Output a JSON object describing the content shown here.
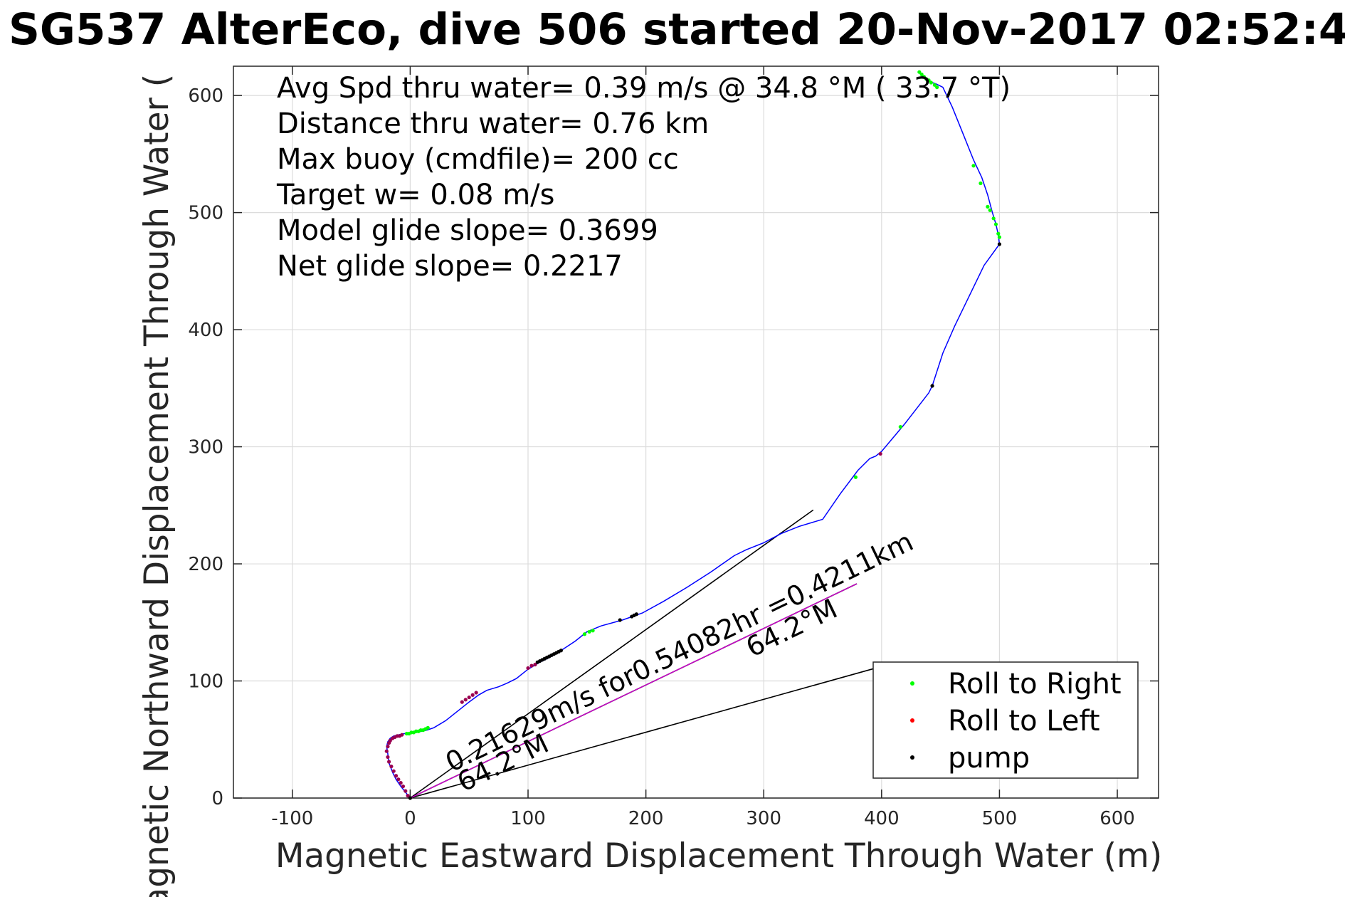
{
  "chart_data": {
    "type": "line",
    "title": "SG537 AlterEco, dive 506 started 20-Nov-2017 02:52:4",
    "xlabel": "Magnetic Eastward Displacement Through Water (m)",
    "ylabel": "Magnetic Northward Displacement Through Water (",
    "xlim": [
      -150,
      635
    ],
    "ylim": [
      0,
      625
    ],
    "xticks": [
      -100,
      0,
      100,
      200,
      300,
      400,
      500,
      600
    ],
    "xtick_labels": [
      "-100",
      "0",
      "100",
      "200",
      "300",
      "400",
      "500",
      "600"
    ],
    "yticks": [
      0,
      100,
      200,
      300,
      400,
      500,
      600
    ],
    "ytick_labels": [
      "0",
      "100",
      "200",
      "300",
      "400",
      "500",
      "600"
    ],
    "grid": true,
    "legend_position": "bottom-right",
    "info_lines": [
      "Avg Spd thru water=  0.39 m/s @  34.8 °M ( 33.7 °T)",
      "Distance thru water=  0.76 km",
      "Max buoy (cmdfile)= 200 cc",
      "Target w= 0.08 m/s",
      "Model glide slope= 0.3699",
      "Net glide slope= 0.2217"
    ],
    "annotations": [
      {
        "text": "0.21629m/s for0.54082hr =0.4211km",
        "x": 35,
        "y": 22,
        "angle": 25.8
      },
      {
        "text": "64.2°M",
        "x": 45,
        "y": 5,
        "angle": 25.8
      },
      {
        "text": "64.2°M",
        "x": 290,
        "y": 120,
        "angle": 25.8
      }
    ],
    "reference_lines": [
      {
        "name": "heading",
        "x": [
          0,
          342
        ],
        "y": [
          0,
          246
        ]
      },
      {
        "name": "net",
        "x": [
          0,
          379
        ],
        "y": [
          0,
          183
        ]
      },
      {
        "name": "current",
        "x": [
          0,
          395
        ],
        "y": [
          0,
          111
        ]
      }
    ],
    "track": {
      "name": "track",
      "color": "#0000ff",
      "x": [
        0,
        -4,
        -8,
        -12,
        -15,
        -18,
        -19,
        -20,
        -19,
        -17,
        -14,
        -10,
        -5,
        0,
        5,
        10,
        14,
        20,
        30,
        40,
        50,
        58,
        65,
        75,
        82,
        90,
        100,
        110,
        120,
        128,
        140,
        150,
        162,
        180,
        197,
        215,
        235,
        255,
        275,
        285,
        300,
        315,
        330,
        350,
        365,
        380,
        390,
        395,
        400,
        410,
        420,
        430,
        440,
        443,
        452,
        462,
        475,
        487,
        500,
        499,
        497,
        494,
        490,
        485,
        478,
        470,
        460,
        452,
        446,
        440,
        434,
        432
      ],
      "y": [
        0,
        5,
        10,
        16,
        22,
        30,
        38,
        44,
        48,
        51,
        53,
        54,
        55,
        55,
        56,
        57,
        58,
        60,
        66,
        74,
        82,
        88,
        92,
        95,
        98,
        102,
        110,
        116,
        121,
        126,
        134,
        142,
        147,
        152,
        158,
        168,
        180,
        193,
        207,
        212,
        218,
        226,
        232,
        238,
        260,
        280,
        290,
        292,
        296,
        308,
        320,
        333,
        346,
        352,
        380,
        403,
        430,
        455,
        473,
        481,
        490,
        500,
        515,
        530,
        545,
        565,
        590,
        607,
        610,
        612,
        617,
        620
      ]
    },
    "series": [
      {
        "name": "Roll to Right",
        "color": "#00ff00",
        "x": [
          -3,
          -1,
          1,
          3,
          5,
          7,
          9,
          11,
          13,
          15,
          148,
          152,
          155,
          378,
          416,
          432,
          434,
          436,
          438,
          440,
          442,
          445,
          447,
          478,
          484,
          490,
          492,
          495,
          497,
          499,
          500
        ],
        "y": [
          55,
          55,
          56,
          56,
          57,
          57,
          58,
          58,
          59,
          60,
          140,
          142,
          143,
          274,
          317,
          620,
          618,
          616,
          614,
          613,
          611,
          609,
          607,
          540,
          525,
          505,
          502,
          495,
          490,
          482,
          479
        ]
      },
      {
        "name": "Roll to Left",
        "color": "#ff0000",
        "x": [
          -2,
          -4,
          -6,
          -8,
          -10,
          -12,
          -14,
          -16,
          -18,
          -19,
          -20,
          -19,
          -18,
          -17,
          -15,
          -13,
          -11,
          -9,
          -7,
          44,
          47,
          50,
          53,
          56,
          100,
          103,
          106,
          399
        ],
        "y": [
          2,
          6,
          10,
          13,
          16,
          19,
          23,
          27,
          31,
          35,
          40,
          44,
          47,
          49,
          51,
          52,
          53,
          53,
          54,
          82,
          84,
          86,
          88,
          90,
          111,
          113,
          114,
          294
        ],
        "shown_color": "#9a0050"
      },
      {
        "name": "pump",
        "color": "#000000",
        "x": [
          0,
          108,
          110,
          112,
          114,
          116,
          118,
          120,
          122,
          124,
          126,
          128,
          178,
          188,
          190,
          192,
          443,
          500
        ],
        "y": [
          0,
          116,
          117,
          118,
          119,
          120,
          121,
          122,
          123,
          124,
          125,
          126,
          152,
          155,
          156,
          157,
          352,
          473
        ]
      }
    ]
  }
}
